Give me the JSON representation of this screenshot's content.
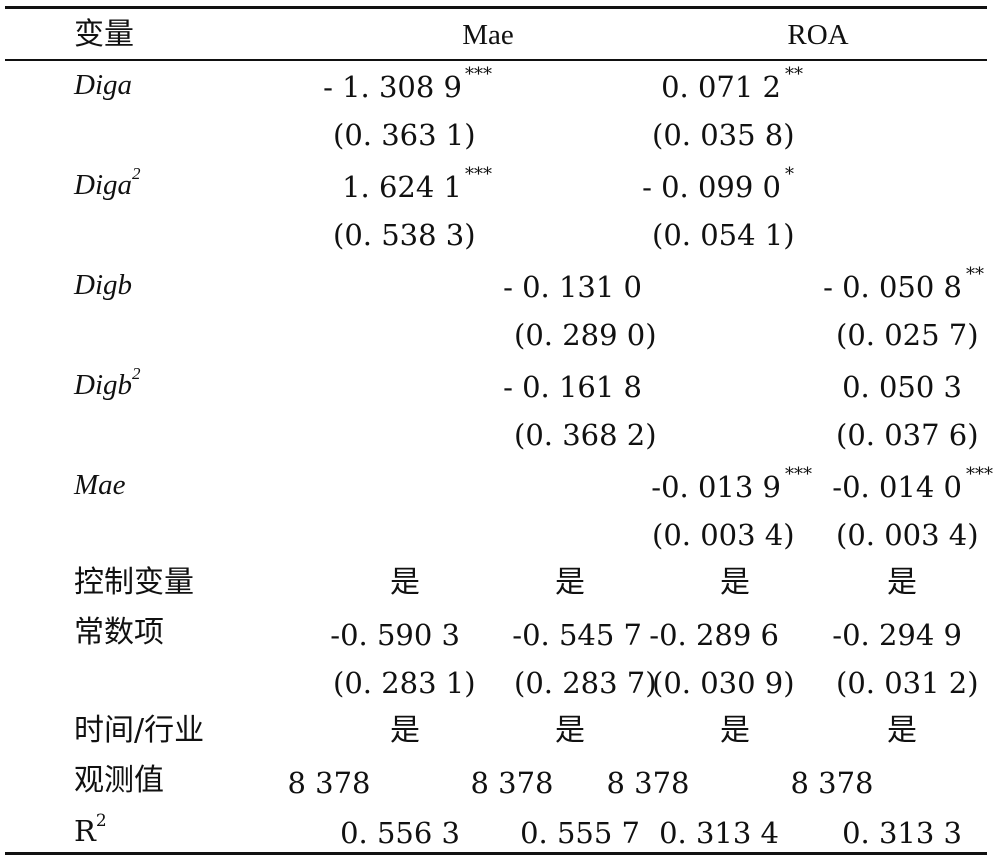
{
  "header": {
    "variable": "变量",
    "mae": "Mae",
    "roa": "ROA"
  },
  "rows": {
    "diga": {
      "label": "Diga",
      "c1": "- 1. 308 9",
      "c1_sig": "***",
      "c3": "0. 071 2",
      "c3_sig": "**",
      "c1_se": "(0. 363 1)",
      "c3_se": "(0. 035 8)"
    },
    "diga2": {
      "label": "Diga",
      "power": "2",
      "c1": "1. 624 1",
      "c1_sig": "***",
      "c3": "- 0. 099 0",
      "c3_sig": "*",
      "c1_se": "(0. 538 3)",
      "c3_se": "(0. 054 1)"
    },
    "digb": {
      "label": "Digb",
      "c2": "- 0. 131 0",
      "c4": "- 0. 050 8",
      "c4_sig": "**",
      "c2_se": "(0. 289 0)",
      "c4_se": "(0. 025 7)"
    },
    "digb2": {
      "label": "Digb",
      "power": "2",
      "c2": "- 0. 161 8",
      "c4": "0. 050 3",
      "c2_se": "(0. 368 2)",
      "c4_se": "(0. 037 6)"
    },
    "mae": {
      "label": "Mae",
      "c3": "-0. 013 9",
      "c3_sig": "***",
      "c4": "-0. 014 0",
      "c4_sig": "***",
      "c3_se": "(0. 003 4)",
      "c4_se": "(0. 003 4)"
    },
    "controls": {
      "label": "控制变量",
      "c1": "是",
      "c2": "是",
      "c3": "是",
      "c4": "是"
    },
    "constant": {
      "label": "常数项",
      "c1": "-0. 590 3",
      "c2": "-0. 545 7",
      "c3": "-0. 289 6",
      "c4": "-0. 294 9",
      "c1_se": "(0. 283 1)",
      "c2_se": "(0. 283 7)",
      "c3_se": "(0. 030 9)",
      "c4_se": "(0. 031 2)"
    },
    "fixed": {
      "label": "时间/行业",
      "c1": "是",
      "c2": "是",
      "c3": "是",
      "c4": "是"
    },
    "obs": {
      "label": "观测值",
      "c1": "8 378",
      "c2": "8 378",
      "c3": "8 378",
      "c4": "8 378"
    },
    "r2": {
      "label": "R",
      "power": "2",
      "c1": "0. 556 3",
      "c2": "0. 555 7",
      "c3": "0. 313 4",
      "c4": "0. 313 3"
    }
  }
}
